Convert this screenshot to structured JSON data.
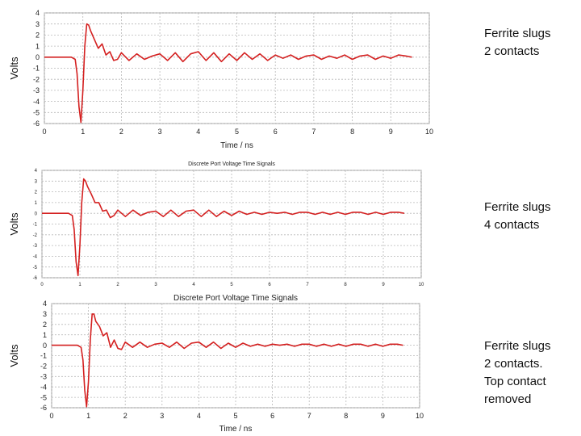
{
  "chart_data": [
    {
      "type": "line",
      "title": "",
      "xlabel": "Time / ns",
      "ylabel": "Volts",
      "xlim": [
        0,
        10
      ],
      "ylim": [
        -6,
        4
      ],
      "x_ticks": [
        "0",
        "1",
        "2",
        "3",
        "4",
        "5",
        "6",
        "7",
        "8",
        "9",
        "10"
      ],
      "y_ticks": [
        "4",
        "3",
        "2",
        "1",
        "0",
        "-1",
        "-2",
        "-3",
        "-4",
        "-5",
        "-6"
      ],
      "grid": true,
      "panel_label": [
        "Ferrite slugs",
        "2 contacts"
      ],
      "series": [
        {
          "color": "#d42020",
          "x": [
            0,
            0.5,
            0.7,
            0.8,
            0.85,
            0.9,
            0.95,
            1.0,
            1.05,
            1.1,
            1.15,
            1.2,
            1.3,
            1.4,
            1.5,
            1.6,
            1.7,
            1.8,
            1.9,
            2.0,
            2.2,
            2.4,
            2.6,
            2.8,
            3.0,
            3.2,
            3.4,
            3.6,
            3.8,
            4.0,
            4.2,
            4.4,
            4.6,
            4.8,
            5.0,
            5.2,
            5.4,
            5.6,
            5.8,
            6.0,
            6.2,
            6.4,
            6.6,
            6.8,
            7.0,
            7.2,
            7.4,
            7.6,
            7.8,
            8.0,
            8.2,
            8.4,
            8.6,
            8.8,
            9.0,
            9.2,
            9.4,
            9.55
          ],
          "y": [
            0,
            0,
            0,
            -0.2,
            -1.5,
            -4.5,
            -5.9,
            -3.0,
            1.0,
            3.0,
            2.9,
            2.4,
            1.6,
            0.8,
            1.2,
            0.2,
            0.5,
            -0.3,
            -0.2,
            0.4,
            -0.3,
            0.3,
            -0.2,
            0.1,
            0.3,
            -0.3,
            0.4,
            -0.4,
            0.3,
            0.5,
            -0.3,
            0.4,
            -0.4,
            0.3,
            -0.3,
            0.4,
            -0.2,
            0.3,
            -0.3,
            0.2,
            -0.1,
            0.2,
            -0.2,
            0.1,
            0.2,
            -0.2,
            0.1,
            -0.1,
            0.2,
            -0.2,
            0.1,
            0.2,
            -0.2,
            0.1,
            -0.1,
            0.2,
            0.1,
            0
          ]
        }
      ]
    },
    {
      "type": "line",
      "title": "Discrete Port Voltage Time Signals",
      "xlabel": "",
      "ylabel": "Volts",
      "xlim": [
        0,
        10
      ],
      "ylim": [
        -6,
        4
      ],
      "x_ticks": [
        "0",
        "1",
        "2",
        "3",
        "4",
        "5",
        "6",
        "7",
        "8",
        "9",
        "10"
      ],
      "y_ticks": [
        "4",
        "3",
        "2",
        "1",
        "0",
        "-1",
        "-2",
        "-3",
        "-4",
        "-5",
        "-6"
      ],
      "grid": true,
      "panel_label": [
        "Ferrite slugs",
        "4 contacts"
      ],
      "series": [
        {
          "color": "#d42020",
          "x": [
            0,
            0.5,
            0.7,
            0.8,
            0.85,
            0.9,
            0.95,
            1.0,
            1.05,
            1.1,
            1.15,
            1.2,
            1.3,
            1.4,
            1.5,
            1.6,
            1.7,
            1.8,
            1.9,
            2.0,
            2.2,
            2.4,
            2.6,
            2.8,
            3.0,
            3.2,
            3.4,
            3.6,
            3.8,
            4.0,
            4.2,
            4.4,
            4.6,
            4.8,
            5.0,
            5.2,
            5.4,
            5.6,
            5.8,
            6.0,
            6.2,
            6.4,
            6.6,
            6.8,
            7.0,
            7.2,
            7.4,
            7.6,
            7.8,
            8.0,
            8.2,
            8.4,
            8.6,
            8.8,
            9.0,
            9.2,
            9.4,
            9.55
          ],
          "y": [
            0,
            0,
            0,
            -0.2,
            -1.5,
            -4.5,
            -5.8,
            -3.0,
            1.0,
            3.2,
            3.0,
            2.5,
            1.8,
            1.0,
            1.0,
            0.2,
            0.3,
            -0.4,
            -0.2,
            0.3,
            -0.3,
            0.3,
            -0.2,
            0.1,
            0.2,
            -0.3,
            0.3,
            -0.3,
            0.2,
            0.3,
            -0.3,
            0.3,
            -0.3,
            0.2,
            -0.2,
            0.2,
            -0.1,
            0.1,
            -0.1,
            0.1,
            0,
            0.1,
            -0.1,
            0.1,
            0.1,
            -0.1,
            0.1,
            -0.1,
            0.1,
            -0.1,
            0.1,
            0.1,
            -0.1,
            0.1,
            -0.1,
            0.1,
            0.1,
            0
          ]
        }
      ]
    },
    {
      "type": "line",
      "title": "Discrete Port Voltage Time Signals",
      "xlabel": "Time / ns",
      "ylabel": "Volts",
      "xlim": [
        0,
        10
      ],
      "ylim": [
        -6,
        4
      ],
      "x_ticks": [
        "0",
        "1",
        "2",
        "3",
        "4",
        "5",
        "6",
        "7",
        "8",
        "9",
        "10"
      ],
      "y_ticks": [
        "4",
        "3",
        "2",
        "1",
        "0",
        "-1",
        "-2",
        "-3",
        "-4",
        "-5",
        "-6"
      ],
      "grid": true,
      "panel_label": [
        "Ferrite slugs",
        "2 contacts.",
        "Top contact",
        "removed"
      ],
      "series": [
        {
          "color": "#d42020",
          "x": [
            0,
            0.5,
            0.7,
            0.8,
            0.85,
            0.9,
            0.95,
            1.0,
            1.05,
            1.1,
            1.15,
            1.2,
            1.3,
            1.4,
            1.5,
            1.6,
            1.7,
            1.8,
            1.9,
            2.0,
            2.2,
            2.4,
            2.6,
            2.8,
            3.0,
            3.2,
            3.4,
            3.6,
            3.8,
            4.0,
            4.2,
            4.4,
            4.6,
            4.8,
            5.0,
            5.2,
            5.4,
            5.6,
            5.8,
            6.0,
            6.2,
            6.4,
            6.6,
            6.8,
            7.0,
            7.2,
            7.4,
            7.6,
            7.8,
            8.0,
            8.2,
            8.4,
            8.6,
            8.8,
            9.0,
            9.2,
            9.4,
            9.55
          ],
          "y": [
            0,
            0,
            0,
            -0.2,
            -1.4,
            -4.3,
            -5.9,
            -3.5,
            0.5,
            3.0,
            3.0,
            2.3,
            1.8,
            0.9,
            1.2,
            -0.2,
            0.5,
            -0.3,
            -0.4,
            0.3,
            -0.2,
            0.3,
            -0.2,
            0.1,
            0.2,
            -0.2,
            0.3,
            -0.3,
            0.2,
            0.3,
            -0.2,
            0.3,
            -0.3,
            0.2,
            -0.2,
            0.2,
            -0.1,
            0.1,
            -0.1,
            0.1,
            0,
            0.1,
            -0.1,
            0.1,
            0.1,
            -0.1,
            0.1,
            -0.1,
            0.1,
            -0.1,
            0.1,
            0.1,
            -0.1,
            0.1,
            -0.1,
            0.1,
            0.1,
            0
          ]
        }
      ]
    }
  ]
}
